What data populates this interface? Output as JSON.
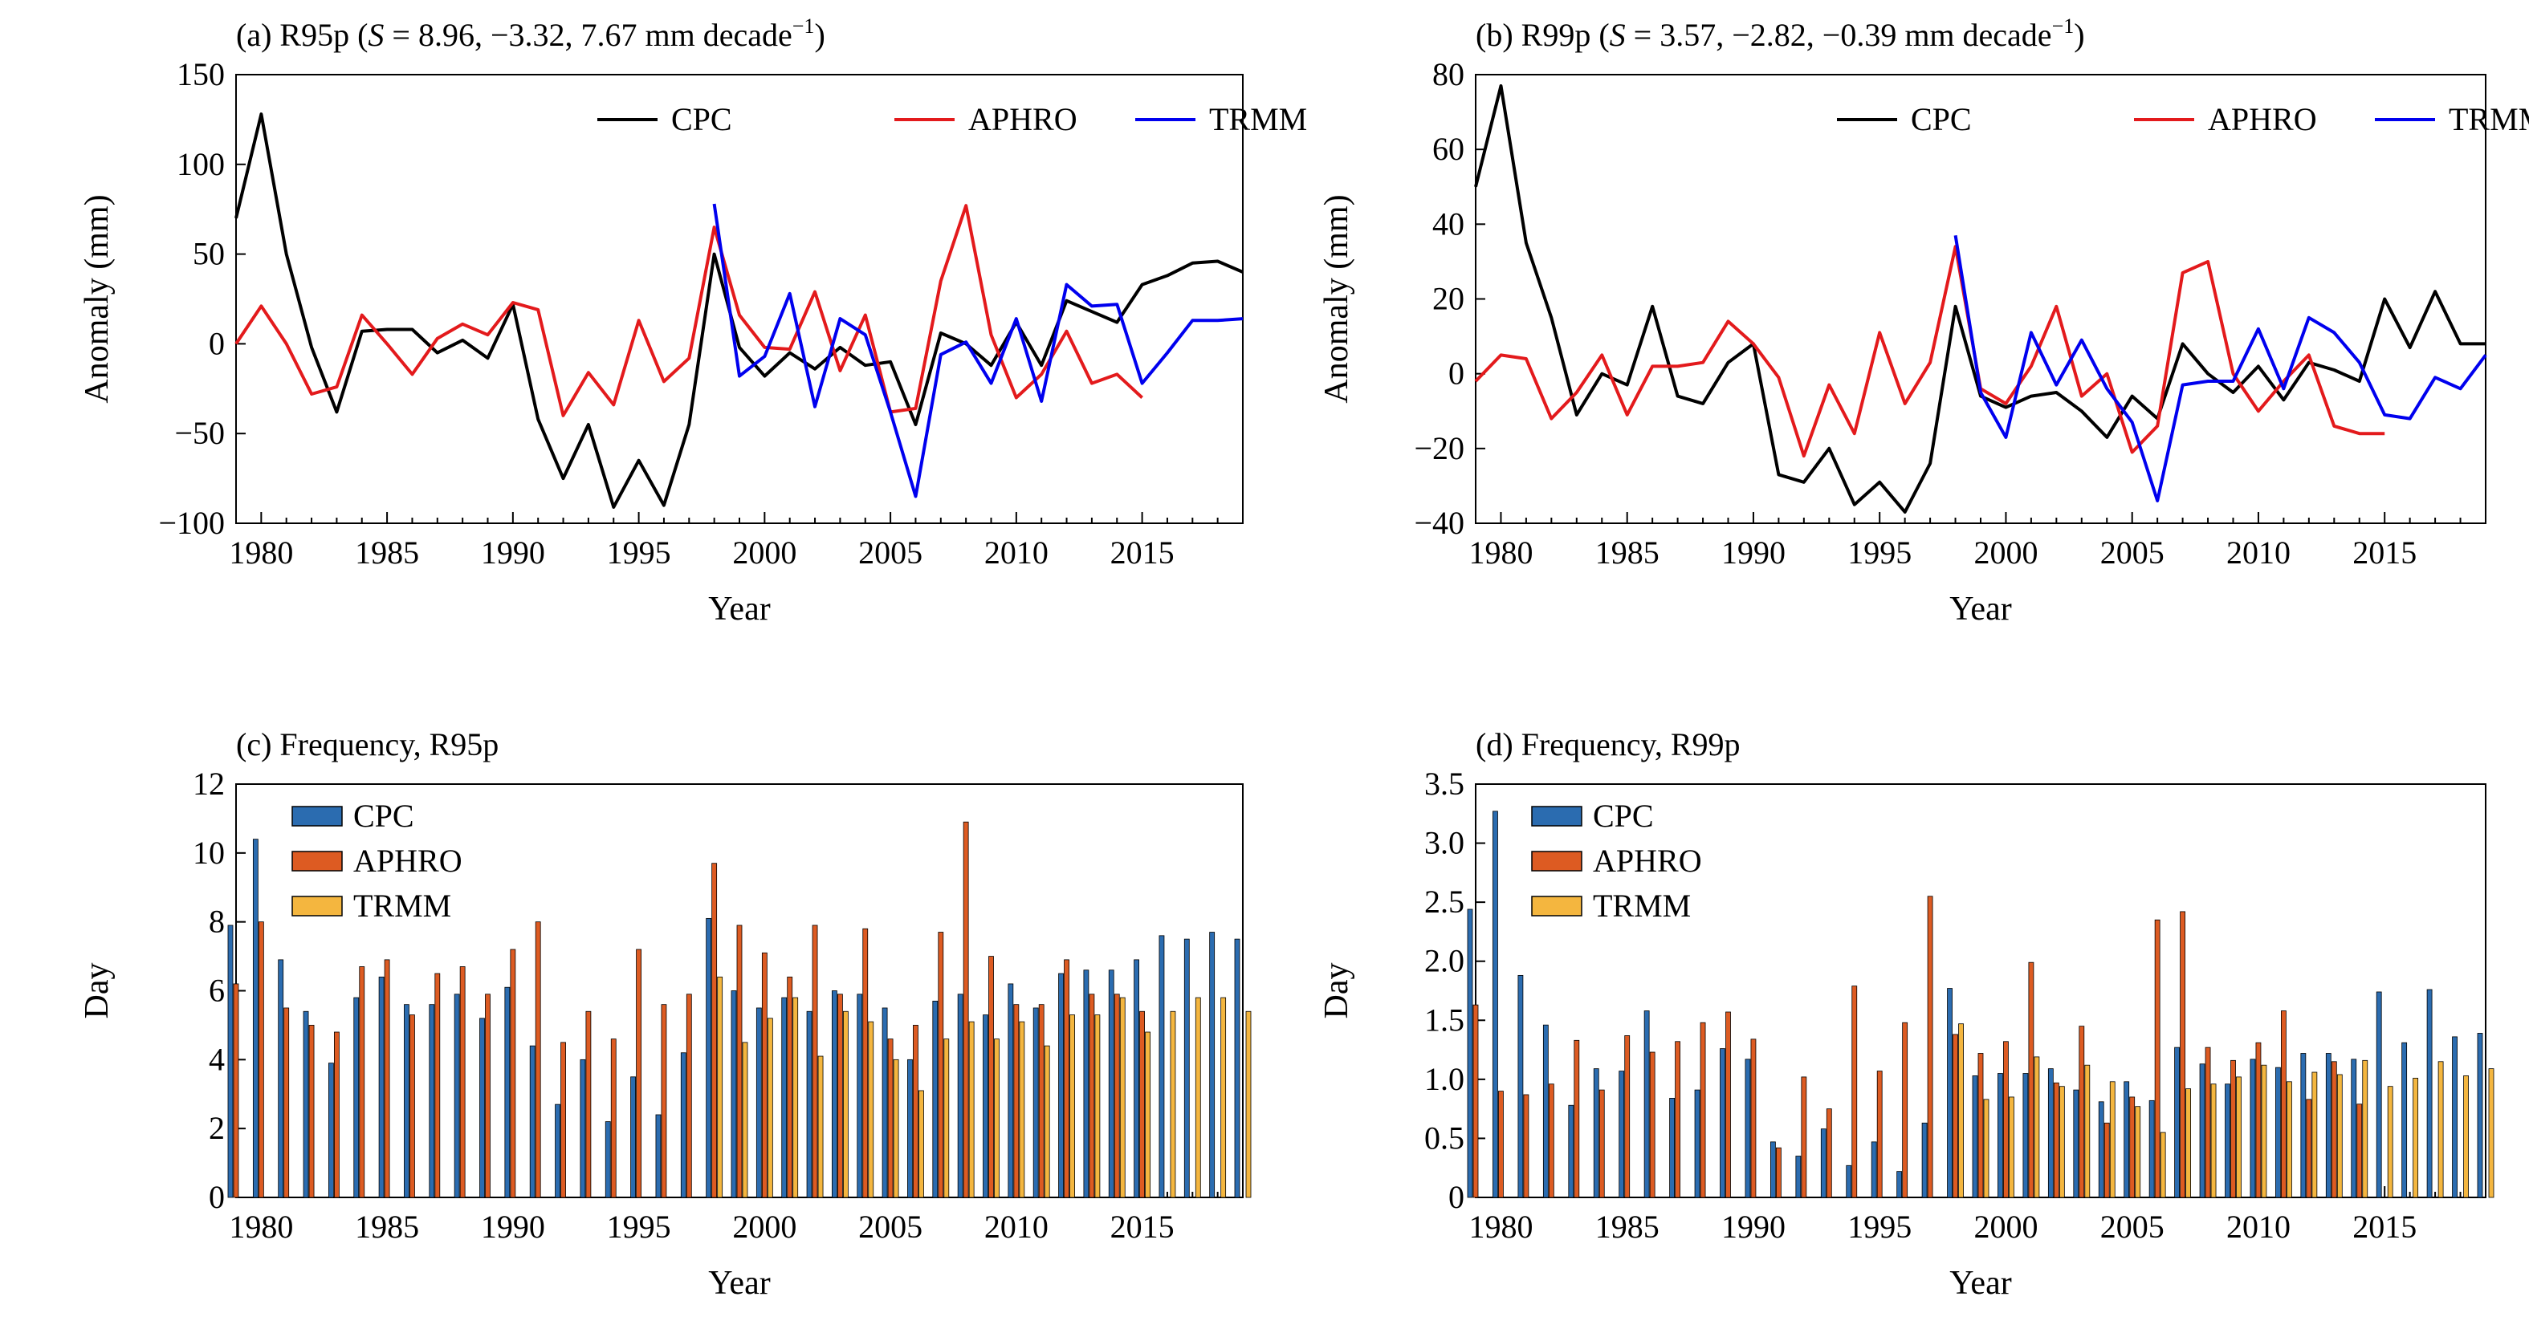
{
  "chart_data": [
    {
      "type": "line",
      "title": "(a) R95p (S = 8.96, −3.32, 7.67 mm decade⁻¹)",
      "title_parts": {
        "pre": "(a) R95p (",
        "italic": "S",
        "mid": " = 8.96, −3.32, 7.67 mm decade",
        "sup": "−1",
        "post": ")"
      },
      "xlabel": "Year",
      "ylabel": "Anomaly (mm)",
      "xlim": [
        1979,
        2019
      ],
      "ylim": [
        -100,
        150
      ],
      "xticks": [
        1980,
        1985,
        1990,
        1995,
        2000,
        2005,
        2010,
        2015
      ],
      "yticks": [
        -100,
        -50,
        0,
        50,
        100,
        150
      ],
      "grid": false,
      "legend": "top-right, horizontal",
      "series": [
        {
          "name": "CPC",
          "color": "#000000",
          "start": 1979,
          "values": [
            70,
            128,
            50,
            -2,
            -38,
            7,
            8,
            8,
            -5,
            2,
            -8,
            22,
            -42,
            -75,
            -45,
            -91,
            -65,
            -90,
            -45,
            50,
            -2,
            -18,
            -5,
            -14,
            -2,
            -12,
            -10,
            -45,
            6,
            0,
            -12,
            12,
            -12,
            24,
            18,
            12,
            33,
            38,
            45,
            46,
            40
          ]
        },
        {
          "name": "APHRO",
          "color": "#e31a1c",
          "start": 1979,
          "values": [
            0,
            21,
            0,
            -28,
            -24,
            16,
            0,
            -17,
            3,
            11,
            5,
            23,
            19,
            -40,
            -16,
            -34,
            13,
            -21,
            -8,
            65,
            16,
            -2,
            -3,
            29,
            -15,
            16,
            -38,
            -36,
            35,
            77,
            5,
            -30,
            -17,
            7,
            -22,
            -17,
            -30
          ]
        },
        {
          "name": "TRMM",
          "color": "#0000ee",
          "start": 1998,
          "values": [
            78,
            -18,
            -7,
            28,
            -35,
            14,
            5,
            -38,
            -85,
            -6,
            1,
            -22,
            14,
            -32,
            33,
            21,
            22,
            -22,
            -5,
            13,
            13,
            14
          ]
        }
      ]
    },
    {
      "type": "line",
      "title": "(b) R99p (S = 3.57, −2.82, −0.39 mm decade⁻¹)",
      "title_parts": {
        "pre": "(b) R99p (",
        "italic": "S",
        "mid": " = 3.57, −2.82, −0.39 mm decade",
        "sup": "−1",
        "post": ")"
      },
      "xlabel": "Year",
      "ylabel": "Anomaly (mm)",
      "xlim": [
        1979,
        2019
      ],
      "ylim": [
        -40,
        80
      ],
      "xticks": [
        1980,
        1985,
        1990,
        1995,
        2000,
        2005,
        2010,
        2015
      ],
      "yticks": [
        -40,
        -20,
        0,
        20,
        40,
        60,
        80
      ],
      "grid": false,
      "legend": "top-right, horizontal",
      "series": [
        {
          "name": "CPC",
          "color": "#000000",
          "start": 1979,
          "values": [
            50,
            77,
            35,
            15,
            -11,
            0,
            -3,
            18,
            -6,
            -8,
            3,
            8,
            -27,
            -29,
            -20,
            -35,
            -29,
            -37,
            -24,
            18,
            -6,
            -9,
            -6,
            -5,
            -10,
            -17,
            -6,
            -12,
            8,
            0,
            -5,
            2,
            -7,
            3,
            1,
            -2,
            20,
            7,
            22,
            8,
            8
          ]
        },
        {
          "name": "APHRO",
          "color": "#e31a1c",
          "start": 1979,
          "values": [
            -2,
            5,
            4,
            -12,
            -5,
            5,
            -11,
            2,
            2,
            3,
            14,
            8,
            -1,
            -22,
            -3,
            -16,
            11,
            -8,
            3,
            34,
            -4,
            -8,
            2,
            18,
            -6,
            0,
            -21,
            -14,
            27,
            30,
            0,
            -10,
            -2,
            5,
            -14,
            -16,
            -16
          ]
        },
        {
          "name": "TRMM",
          "color": "#0000ee",
          "start": 1998,
          "values": [
            37,
            -5,
            -17,
            11,
            -3,
            9,
            -4,
            -13,
            -34,
            -3,
            -2,
            -2,
            12,
            -4,
            15,
            11,
            3,
            -11,
            -12,
            -1,
            -4,
            5
          ]
        }
      ]
    },
    {
      "type": "bar",
      "title": "(c) Frequency, R95p",
      "xlabel": "Year",
      "ylabel": "Day",
      "xlim": [
        1979,
        2019
      ],
      "ylim": [
        0,
        12
      ],
      "xticks": [
        1980,
        1985,
        1990,
        1995,
        2000,
        2005,
        2010,
        2015
      ],
      "yticks": [
        0,
        2,
        4,
        6,
        8,
        10,
        12
      ],
      "grid": false,
      "legend": "top-left, vertical",
      "series": [
        {
          "name": "CPC",
          "color": "#2b6cb0",
          "start": 1979,
          "values": [
            7.9,
            10.4,
            6.9,
            5.4,
            3.9,
            5.8,
            6.4,
            5.6,
            5.6,
            5.9,
            5.2,
            6.1,
            4.4,
            2.7,
            4.0,
            2.2,
            3.5,
            2.4,
            4.2,
            8.1,
            6.0,
            5.5,
            5.8,
            5.4,
            6.0,
            5.9,
            5.5,
            4.0,
            5.7,
            5.9,
            5.3,
            6.2,
            5.5,
            6.5,
            6.6,
            6.6,
            6.9,
            7.6,
            7.5,
            7.7,
            7.5
          ]
        },
        {
          "name": "APHRO",
          "color": "#dd5b22",
          "start": 1979,
          "values": [
            6.2,
            8.0,
            5.5,
            5.0,
            4.8,
            6.7,
            6.9,
            5.3,
            6.5,
            6.7,
            5.9,
            7.2,
            8.0,
            4.5,
            5.4,
            4.6,
            7.2,
            5.6,
            5.9,
            9.7,
            7.9,
            7.1,
            6.4,
            7.9,
            5.9,
            7.8,
            4.6,
            5.0,
            7.7,
            10.9,
            7.0,
            5.6,
            5.6,
            6.9,
            5.9,
            5.9,
            5.4
          ]
        },
        {
          "name": "TRMM",
          "color": "#f4b63f",
          "start": 1998,
          "values": [
            6.4,
            4.5,
            5.2,
            5.8,
            4.1,
            5.4,
            5.1,
            4.0,
            3.1,
            4.6,
            5.1,
            4.6,
            5.1,
            4.4,
            5.3,
            5.3,
            5.8,
            4.8,
            5.4,
            5.8,
            5.8,
            5.4
          ]
        }
      ]
    },
    {
      "type": "bar",
      "title": "(d) Frequency, R99p",
      "xlabel": "Year",
      "ylabel": "Day",
      "xlim": [
        1979,
        2019
      ],
      "ylim": [
        0,
        3.5
      ],
      "xticks": [
        1980,
        1985,
        1990,
        1995,
        2000,
        2005,
        2010,
        2015
      ],
      "yticks": [
        0,
        0.5,
        1.0,
        1.5,
        2.0,
        2.5,
        3.0,
        3.5
      ],
      "ytick_labels": [
        "0",
        "0.5",
        "1.0",
        "1.5",
        "2.0",
        "2.5",
        "3.0",
        "3.5"
      ],
      "grid": false,
      "legend": "top-left, vertical",
      "series": [
        {
          "name": "CPC",
          "color": "#2b6cb0",
          "start": 1979,
          "values": [
            2.44,
            3.27,
            1.88,
            1.46,
            0.78,
            1.09,
            1.07,
            1.58,
            0.84,
            0.91,
            1.26,
            1.17,
            0.47,
            0.35,
            0.58,
            0.27,
            0.47,
            0.22,
            0.63,
            1.77,
            1.03,
            1.05,
            1.05,
            1.09,
            0.91,
            0.81,
            0.98,
            0.82,
            1.27,
            1.13,
            0.96,
            1.17,
            1.1,
            1.22,
            1.22,
            1.17,
            1.74,
            1.31,
            1.76,
            1.36,
            1.39
          ]
        },
        {
          "name": "APHRO",
          "color": "#dd5b22",
          "start": 1979,
          "values": [
            1.63,
            0.9,
            0.87,
            0.96,
            1.33,
            0.91,
            1.37,
            1.23,
            1.32,
            1.48,
            1.57,
            1.34,
            0.42,
            1.02,
            0.75,
            1.79,
            1.07,
            1.48,
            2.55,
            1.38,
            1.22,
            1.32,
            1.99,
            0.97,
            1.45,
            0.63,
            0.85,
            2.35,
            2.42,
            1.27,
            1.16,
            1.31,
            1.58,
            0.83,
            1.15,
            0.79
          ]
        },
        {
          "name": "TRMM",
          "color": "#f4b63f",
          "start": 1998,
          "values": [
            1.47,
            0.83,
            0.85,
            1.19,
            0.94,
            1.12,
            0.98,
            0.77,
            0.55,
            0.92,
            0.96,
            1.02,
            1.12,
            0.98,
            1.06,
            1.04,
            1.16,
            0.94,
            1.01,
            1.15,
            1.03,
            1.09
          ]
        }
      ]
    }
  ]
}
